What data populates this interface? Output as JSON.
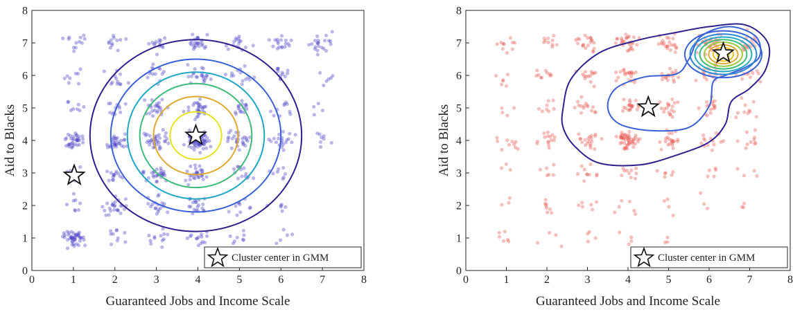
{
  "chart_data": [
    {
      "type": "scatter",
      "subtype": "scatter-with-gmm-contours",
      "xlabel": "Guaranteed Jobs and Income Scale",
      "ylabel": "Aid to Blacks",
      "xlim": [
        0,
        8
      ],
      "ylim": [
        0,
        8
      ],
      "xticks": [
        0,
        1,
        2,
        3,
        4,
        5,
        6,
        7,
        8
      ],
      "yticks": [
        0,
        1,
        2,
        3,
        4,
        5,
        6,
        7,
        8
      ],
      "grid": false,
      "point_color": "#4a3fc4",
      "clusters": [
        {
          "x": 1,
          "y": 1,
          "n": 45
        },
        {
          "x": 1,
          "y": 4,
          "n": 35
        },
        {
          "x": 1,
          "y": 7,
          "n": 12
        },
        {
          "x": 1,
          "y": 2,
          "n": 8
        },
        {
          "x": 1,
          "y": 3,
          "n": 8
        },
        {
          "x": 1,
          "y": 5,
          "n": 8
        },
        {
          "x": 1,
          "y": 6,
          "n": 8
        },
        {
          "x": 2,
          "y": 1,
          "n": 10
        },
        {
          "x": 2,
          "y": 2,
          "n": 25
        },
        {
          "x": 2,
          "y": 3,
          "n": 14
        },
        {
          "x": 2,
          "y": 4,
          "n": 30
        },
        {
          "x": 2,
          "y": 5,
          "n": 12
        },
        {
          "x": 2,
          "y": 6,
          "n": 12
        },
        {
          "x": 2,
          "y": 7,
          "n": 12
        },
        {
          "x": 3,
          "y": 1,
          "n": 12
        },
        {
          "x": 3,
          "y": 2,
          "n": 18
        },
        {
          "x": 3,
          "y": 3,
          "n": 28
        },
        {
          "x": 3,
          "y": 4,
          "n": 35
        },
        {
          "x": 3,
          "y": 5,
          "n": 24
        },
        {
          "x": 3,
          "y": 6,
          "n": 14
        },
        {
          "x": 3,
          "y": 7,
          "n": 14
        },
        {
          "x": 4,
          "y": 1,
          "n": 14
        },
        {
          "x": 4,
          "y": 2,
          "n": 20
        },
        {
          "x": 4,
          "y": 3,
          "n": 30
        },
        {
          "x": 4,
          "y": 4,
          "n": 80
        },
        {
          "x": 4,
          "y": 5,
          "n": 30
        },
        {
          "x": 4,
          "y": 6,
          "n": 22
        },
        {
          "x": 4,
          "y": 7,
          "n": 24
        },
        {
          "x": 5,
          "y": 1,
          "n": 8
        },
        {
          "x": 5,
          "y": 2,
          "n": 10
        },
        {
          "x": 5,
          "y": 3,
          "n": 14
        },
        {
          "x": 5,
          "y": 4,
          "n": 28
        },
        {
          "x": 5,
          "y": 5,
          "n": 16
        },
        {
          "x": 5,
          "y": 6,
          "n": 14
        },
        {
          "x": 5,
          "y": 7,
          "n": 16
        },
        {
          "x": 6,
          "y": 1,
          "n": 5
        },
        {
          "x": 6,
          "y": 2,
          "n": 6
        },
        {
          "x": 6,
          "y": 3,
          "n": 8
        },
        {
          "x": 6,
          "y": 4,
          "n": 20
        },
        {
          "x": 6,
          "y": 5,
          "n": 10
        },
        {
          "x": 6,
          "y": 6,
          "n": 12
        },
        {
          "x": 6,
          "y": 7,
          "n": 18
        },
        {
          "x": 7,
          "y": 4,
          "n": 8
        },
        {
          "x": 7,
          "y": 5,
          "n": 4
        },
        {
          "x": 7,
          "y": 6,
          "n": 6
        },
        {
          "x": 7,
          "y": 7,
          "n": 22
        }
      ],
      "gmm_centers": [
        {
          "x": 3.95,
          "y": 4.15
        },
        {
          "x": 1.02,
          "y": 2.92
        }
      ],
      "contours": [
        {
          "type": "ellipse",
          "cx": 3.95,
          "cy": 4.15,
          "rx": 2.55,
          "ry": 2.95,
          "color": "#2d1f8c"
        },
        {
          "type": "ellipse",
          "cx": 3.95,
          "cy": 4.15,
          "rx": 2.05,
          "ry": 2.35,
          "color": "#3860d6"
        },
        {
          "type": "ellipse",
          "cx": 3.95,
          "cy": 4.15,
          "rx": 1.65,
          "ry": 1.95,
          "color": "#1fa7c4"
        },
        {
          "type": "ellipse",
          "cx": 3.95,
          "cy": 4.15,
          "rx": 1.35,
          "ry": 1.6,
          "color": "#3cbc78"
        },
        {
          "type": "ellipse",
          "cx": 3.95,
          "cy": 4.15,
          "rx": 1.02,
          "ry": 1.2,
          "color": "#e0a830"
        },
        {
          "type": "ellipse",
          "cx": 3.95,
          "cy": 4.15,
          "rx": 0.62,
          "ry": 0.73,
          "color": "#e8e020"
        }
      ],
      "legend": {
        "label": "Cluster center in GMM",
        "position": "bottom-right"
      }
    },
    {
      "type": "scatter",
      "subtype": "scatter-with-gmm-contours",
      "xlabel": "Guaranteed Jobs and Income Scale",
      "ylabel": "Aid to Blacks",
      "xlim": [
        0,
        8
      ],
      "ylim": [
        0,
        8
      ],
      "xticks": [
        0,
        1,
        2,
        3,
        4,
        5,
        6,
        7,
        8
      ],
      "yticks": [
        0,
        1,
        2,
        3,
        4,
        5,
        6,
        7,
        8
      ],
      "grid": false,
      "point_color": "#e8564f",
      "clusters": [
        {
          "x": 1,
          "y": 1,
          "n": 6
        },
        {
          "x": 1,
          "y": 2,
          "n": 3
        },
        {
          "x": 1,
          "y": 3,
          "n": 3
        },
        {
          "x": 1,
          "y": 4,
          "n": 10
        },
        {
          "x": 1,
          "y": 5,
          "n": 4
        },
        {
          "x": 1,
          "y": 6,
          "n": 6
        },
        {
          "x": 1,
          "y": 7,
          "n": 10
        },
        {
          "x": 2,
          "y": 1,
          "n": 4
        },
        {
          "x": 2,
          "y": 2,
          "n": 8
        },
        {
          "x": 2,
          "y": 3,
          "n": 6
        },
        {
          "x": 2,
          "y": 4,
          "n": 15
        },
        {
          "x": 2,
          "y": 5,
          "n": 8
        },
        {
          "x": 2,
          "y": 6,
          "n": 10
        },
        {
          "x": 2,
          "y": 7,
          "n": 10
        },
        {
          "x": 3,
          "y": 1,
          "n": 4
        },
        {
          "x": 3,
          "y": 2,
          "n": 6
        },
        {
          "x": 3,
          "y": 3,
          "n": 10
        },
        {
          "x": 3,
          "y": 4,
          "n": 20
        },
        {
          "x": 3,
          "y": 5,
          "n": 15
        },
        {
          "x": 3,
          "y": 6,
          "n": 14
        },
        {
          "x": 3,
          "y": 7,
          "n": 20
        },
        {
          "x": 4,
          "y": 1,
          "n": 4
        },
        {
          "x": 4,
          "y": 2,
          "n": 6
        },
        {
          "x": 4,
          "y": 3,
          "n": 10
        },
        {
          "x": 4,
          "y": 4,
          "n": 50
        },
        {
          "x": 4,
          "y": 5,
          "n": 20
        },
        {
          "x": 4,
          "y": 6,
          "n": 22
        },
        {
          "x": 4,
          "y": 7,
          "n": 28
        },
        {
          "x": 5,
          "y": 1,
          "n": 3
        },
        {
          "x": 5,
          "y": 2,
          "n": 4
        },
        {
          "x": 5,
          "y": 3,
          "n": 6
        },
        {
          "x": 5,
          "y": 4,
          "n": 22
        },
        {
          "x": 5,
          "y": 5,
          "n": 18
        },
        {
          "x": 5,
          "y": 6,
          "n": 18
        },
        {
          "x": 5,
          "y": 7,
          "n": 22
        },
        {
          "x": 6,
          "y": 2,
          "n": 3
        },
        {
          "x": 6,
          "y": 3,
          "n": 5
        },
        {
          "x": 6,
          "y": 4,
          "n": 14
        },
        {
          "x": 6,
          "y": 5,
          "n": 16
        },
        {
          "x": 6,
          "y": 6,
          "n": 18
        },
        {
          "x": 6,
          "y": 7,
          "n": 30
        },
        {
          "x": 7,
          "y": 2,
          "n": 3
        },
        {
          "x": 7,
          "y": 3,
          "n": 4
        },
        {
          "x": 7,
          "y": 4,
          "n": 10
        },
        {
          "x": 7,
          "y": 5,
          "n": 10
        },
        {
          "x": 7,
          "y": 6,
          "n": 12
        },
        {
          "x": 7,
          "y": 7,
          "n": 18
        }
      ],
      "gmm_centers": [
        {
          "x": 6.35,
          "y": 6.68
        },
        {
          "x": 4.5,
          "y": 5.02
        }
      ],
      "contours": [
        {
          "type": "path",
          "color": "#2d1f8c",
          "points": [
            [
              2.4,
              5.0
            ],
            [
              2.6,
              5.9
            ],
            [
              3.3,
              6.7
            ],
            [
              4.3,
              7.1
            ],
            [
              5.1,
              7.3
            ],
            [
              6.0,
              7.5
            ],
            [
              6.9,
              7.55
            ],
            [
              7.45,
              7.0
            ],
            [
              7.4,
              6.2
            ],
            [
              7.0,
              5.6
            ],
            [
              6.55,
              5.2
            ],
            [
              6.4,
              4.5
            ],
            [
              6.0,
              3.95
            ],
            [
              5.2,
              3.55
            ],
            [
              4.3,
              3.25
            ],
            [
              3.3,
              3.3
            ],
            [
              2.7,
              3.8
            ],
            [
              2.4,
              4.4
            ]
          ]
        },
        {
          "type": "path",
          "color": "#3860d6",
          "points": [
            [
              3.5,
              5.0
            ],
            [
              3.7,
              5.6
            ],
            [
              4.4,
              5.95
            ],
            [
              5.2,
              6.05
            ],
            [
              5.5,
              6.5
            ],
            [
              5.8,
              7.2
            ],
            [
              6.5,
              7.5
            ],
            [
              7.15,
              7.2
            ],
            [
              7.25,
              6.6
            ],
            [
              6.9,
              6.25
            ],
            [
              6.4,
              6.0
            ],
            [
              6.1,
              5.8
            ],
            [
              6.0,
              5.05
            ],
            [
              5.5,
              4.4
            ],
            [
              4.6,
              4.3
            ],
            [
              3.8,
              4.5
            ]
          ]
        },
        {
          "type": "ellipse",
          "cx": 6.35,
          "cy": 6.65,
          "rx": 0.95,
          "ry": 0.72,
          "color": "#3860d6"
        },
        {
          "type": "ellipse",
          "cx": 6.35,
          "cy": 6.65,
          "rx": 0.82,
          "ry": 0.62,
          "color": "#2a84d8"
        },
        {
          "type": "ellipse",
          "cx": 6.35,
          "cy": 6.65,
          "rx": 0.7,
          "ry": 0.53,
          "color": "#1fa7c4"
        },
        {
          "type": "ellipse",
          "cx": 6.35,
          "cy": 6.65,
          "rx": 0.58,
          "ry": 0.45,
          "color": "#3cbc78"
        },
        {
          "type": "ellipse",
          "cx": 6.35,
          "cy": 6.65,
          "rx": 0.47,
          "ry": 0.37,
          "color": "#9dc83a"
        },
        {
          "type": "ellipse",
          "cx": 6.35,
          "cy": 6.65,
          "rx": 0.36,
          "ry": 0.29,
          "color": "#e0a830"
        },
        {
          "type": "ellipse",
          "cx": 6.35,
          "cy": 6.65,
          "rx": 0.25,
          "ry": 0.21,
          "color": "#f0c020"
        },
        {
          "type": "ellipse",
          "cx": 6.35,
          "cy": 6.65,
          "rx": 0.15,
          "ry": 0.13,
          "color": "#e8e020"
        }
      ],
      "legend": {
        "label": "Cluster center in GMM",
        "position": "bottom-right"
      }
    }
  ]
}
